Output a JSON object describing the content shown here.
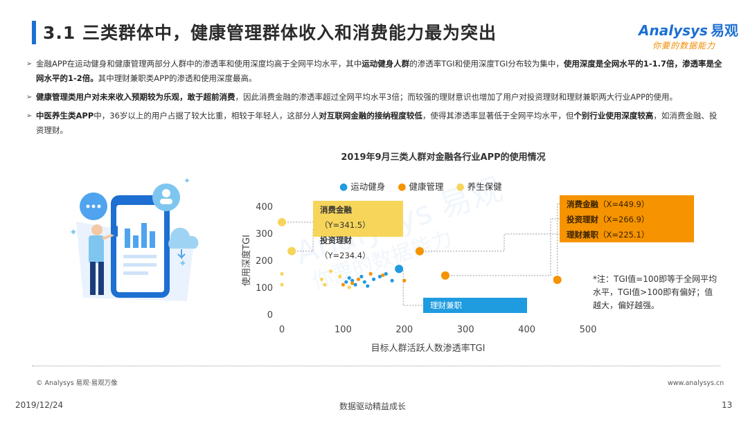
{
  "header": {
    "title": "3.1 三类群体中，健康管理群体收入和消费能力最为突出",
    "logo_en": "Analysys",
    "logo_cn": "易观",
    "logo_slogan": "你要的数据能力"
  },
  "bullets": [
    [
      {
        "t": "金融APP在运动健身和健康管理两部分人群中的渗透率和使用深度均高于全网平均水平，其中",
        "b": false
      },
      {
        "t": "运动健身人群",
        "b": true
      },
      {
        "t": "的渗透率TGI和使用深度TGI分布较为集中，",
        "b": false
      },
      {
        "t": "使用深度是全网水平的1-1.7倍，渗透率是全网水平的1-2倍。",
        "b": true
      },
      {
        "t": "其中理财兼职类APP的渗透和使用深度最高。",
        "b": false
      }
    ],
    [
      {
        "t": "健康管理类用户对未来收入预期较为乐观，敢于超前消费",
        "b": true
      },
      {
        "t": "，因此消费金融的渗透率超过全网平均水平3倍；而较强的理财意识也增加了用户对投资理财和理财兼职两大行业APP的使用。",
        "b": false
      }
    ],
    [
      {
        "t": "中医养生类APP",
        "b": true
      },
      {
        "t": "中，36岁以上的用户占据了较大比重，相较于年轻人，这部分人",
        "b": false
      },
      {
        "t": "对互联网金融的接纳程度较低",
        "b": true
      },
      {
        "t": "，使得其渗透率显著低于全网平均水平，但",
        "b": false
      },
      {
        "t": "个别行业使用深度较高",
        "b": true
      },
      {
        "t": "，如消费金融、投资理财。",
        "b": false
      }
    ]
  ],
  "chart_data": {
    "type": "scatter",
    "title": "2019年9月三类人群对金融各行业APP的使用情况",
    "xlabel": "目标人群活跃人数渗透率TGI",
    "ylabel": "使用深度TGI",
    "xlim": [
      0,
      500
    ],
    "ylim": [
      0,
      400
    ],
    "xticks": [
      "0",
      "100",
      "200",
      "300",
      "400",
      "500"
    ],
    "yticks": [
      "0",
      "100",
      "200",
      "300",
      "400"
    ],
    "grid": false,
    "legend_position": "top",
    "series": [
      {
        "name": "运动健身",
        "color": "#1f9be0",
        "points": [
          [
            191.3,
            168.4
          ],
          [
            105,
            120
          ],
          [
            115,
            125
          ],
          [
            130,
            140
          ],
          [
            140,
            105
          ],
          [
            150,
            130
          ],
          [
            160,
            140
          ],
          [
            170,
            150
          ],
          [
            120,
            110
          ],
          [
            135,
            120
          ],
          [
            180,
            125
          ],
          [
            110,
            135
          ]
        ]
      },
      {
        "name": "健康管理",
        "color": "#f59300",
        "points": [
          [
            449.9,
            128
          ],
          [
            266.9,
            144
          ],
          [
            225.1,
            234
          ],
          [
            100,
            110
          ],
          [
            125,
            130
          ],
          [
            145,
            150
          ],
          [
            165,
            145
          ],
          [
            200,
            125
          ],
          [
            115,
            115
          ]
        ]
      },
      {
        "name": "养生保健",
        "color": "#f6d55a",
        "points": [
          [
            0,
            341.5
          ],
          [
            16,
            234.4
          ],
          [
            0,
            150
          ],
          [
            0,
            110
          ],
          [
            65,
            130
          ],
          [
            80,
            160
          ],
          [
            95,
            140
          ],
          [
            70,
            110
          ],
          [
            110,
            100
          ]
        ]
      }
    ],
    "highlight": [
      {
        "series": 0,
        "index": 0,
        "r": 6
      },
      {
        "series": 1,
        "index": 0,
        "r": 6
      },
      {
        "series": 1,
        "index": 1,
        "r": 6
      },
      {
        "series": 1,
        "index": 2,
        "r": 6
      },
      {
        "series": 2,
        "index": 0,
        "r": 6
      },
      {
        "series": 2,
        "index": 1,
        "r": 6
      }
    ],
    "annotations": {
      "yellow": [
        {
          "label": "消费金融",
          "value": "（Y=341.5）"
        },
        {
          "label": "投资理财",
          "value": "（Y=234.4）"
        }
      ],
      "orange": [
        {
          "label": "消费金融",
          "value": "（X=449.9）"
        },
        {
          "label": "投资理财",
          "value": "（X=266.9）"
        },
        {
          "label": "理财兼职",
          "value": "（X=225.1）"
        }
      ],
      "blue": "理财兼职（191.3,168.4）"
    }
  },
  "note": "*注：TGI值=100即等于全网平均水平，TGI值>100即有偏好；值越大，偏好越强。",
  "footer": {
    "copyright": "© Analysys 易观·易观万像",
    "website": "www.analysys.cn",
    "date": "2019/12/24",
    "slogan": "数据驱动精益成长",
    "page": "13"
  },
  "colors": {
    "accent": "#1d6fd1",
    "fitness": "#1f9be0",
    "health": "#f59300",
    "wellness": "#f6d55a"
  }
}
